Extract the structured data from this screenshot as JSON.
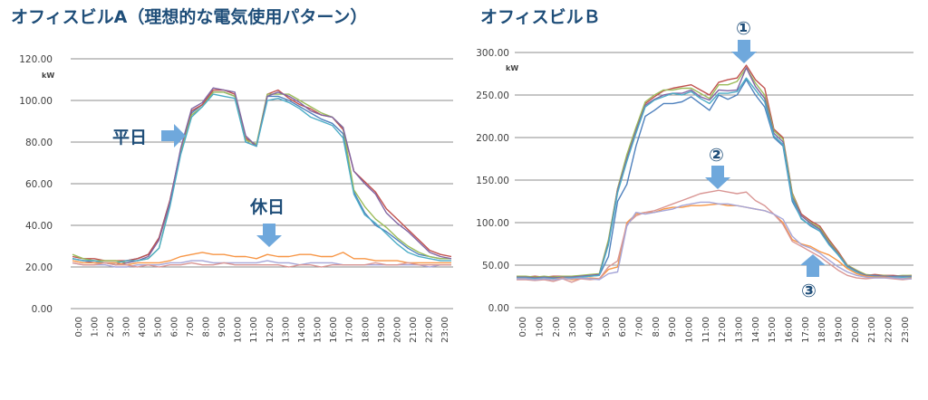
{
  "chart_data": [
    {
      "type": "line",
      "title": "オフィスビルA（理想的な電気使用パターン）",
      "ylabel": "kW",
      "ylim": [
        0,
        120
      ],
      "y_ticks": [
        "0.00",
        "20.00",
        "40.00",
        "60.00",
        "80.00",
        "100.00",
        "120.00"
      ],
      "x_ticks": [
        "0:00",
        "1:00",
        "2:00",
        "3:00",
        "4:00",
        "5:00",
        "6:00",
        "7:00",
        "8:00",
        "9:00",
        "10:00",
        "11:00",
        "12:00",
        "13:00",
        "14:00",
        "15:00",
        "16:00",
        "17:00",
        "18:00",
        "19:00",
        "20:00",
        "21:00",
        "22:00",
        "23:00"
      ],
      "grid": true,
      "annotations": [
        {
          "label": "平日",
          "arrow": "right"
        },
        {
          "label": "休日",
          "arrow": "down"
        }
      ],
      "series": [
        {
          "color": "#4f81bd",
          "values": [
            24,
            23,
            23,
            22,
            22,
            23,
            24,
            26,
            34,
            52,
            76,
            94,
            98,
            104,
            104,
            102,
            80,
            78,
            102,
            102,
            100,
            97,
            94,
            91,
            89,
            84,
            56,
            46,
            40,
            37,
            33,
            29,
            26,
            25,
            24,
            24
          ]
        },
        {
          "color": "#c0504d",
          "values": [
            25,
            24,
            24,
            23,
            23,
            23,
            24,
            26,
            34,
            52,
            76,
            95,
            98,
            105,
            105,
            103,
            82,
            78,
            103,
            105,
            101,
            98,
            96,
            93,
            92,
            86,
            66,
            61,
            56,
            48,
            43,
            38,
            33,
            28,
            26,
            25
          ]
        },
        {
          "color": "#9bbb59",
          "values": [
            26,
            24,
            23,
            23,
            23,
            22,
            23,
            24,
            29,
            50,
            75,
            93,
            97,
            104,
            104,
            102,
            81,
            79,
            103,
            103,
            103,
            100,
            97,
            94,
            92,
            87,
            57,
            49,
            43,
            39,
            34,
            30,
            27,
            25,
            24,
            24
          ]
        },
        {
          "color": "#8064a2",
          "values": [
            24,
            23,
            22,
            22,
            21,
            22,
            23,
            25,
            33,
            51,
            77,
            96,
            99,
            106,
            105,
            104,
            83,
            78,
            102,
            104,
            102,
            99,
            95,
            93,
            92,
            87,
            66,
            60,
            55,
            46,
            41,
            37,
            32,
            27,
            25,
            24
          ]
        },
        {
          "color": "#4bacc6",
          "values": [
            24,
            23,
            23,
            22,
            22,
            23,
            23,
            24,
            29,
            49,
            74,
            92,
            97,
            103,
            102,
            101,
            80,
            78,
            100,
            101,
            99,
            96,
            92,
            90,
            88,
            82,
            55,
            45,
            41,
            36,
            31,
            27,
            25,
            24,
            23,
            23
          ]
        },
        {
          "color": "#f79646",
          "values": [
            23,
            22,
            22,
            22,
            22,
            21,
            22,
            22,
            22,
            23,
            25,
            26,
            27,
            26,
            26,
            25,
            25,
            24,
            26,
            25,
            25,
            26,
            26,
            25,
            25,
            27,
            24,
            24,
            23,
            23,
            23,
            22,
            22,
            22,
            22,
            22
          ]
        },
        {
          "color": "#a6a6d8",
          "values": [
            22,
            21,
            21,
            21,
            20,
            20,
            21,
            21,
            21,
            22,
            22,
            23,
            23,
            22,
            22,
            22,
            22,
            22,
            23,
            22,
            22,
            21,
            22,
            22,
            22,
            21,
            21,
            21,
            21,
            21,
            21,
            21,
            21,
            20,
            21,
            21
          ]
        },
        {
          "color": "#d99694",
          "values": [
            22,
            21,
            21,
            22,
            21,
            21,
            20,
            21,
            20,
            21,
            21,
            22,
            21,
            21,
            22,
            21,
            21,
            21,
            21,
            21,
            20,
            21,
            21,
            20,
            21,
            21,
            21,
            21,
            22,
            21,
            21,
            22,
            21,
            21,
            21,
            21
          ]
        }
      ]
    },
    {
      "type": "line",
      "title": "オフィスビルＢ",
      "ylabel": "kW",
      "ylim": [
        0,
        300
      ],
      "y_ticks": [
        "0.00",
        "50.00",
        "100.00",
        "150.00",
        "200.00",
        "250.00",
        "300.00"
      ],
      "x_ticks": [
        "0:00",
        "1:00",
        "2:00",
        "3:00",
        "4:00",
        "5:00",
        "6:00",
        "7:00",
        "8:00",
        "9:00",
        "10:00",
        "11:00",
        "12:00",
        "13:00",
        "14:00",
        "15:00",
        "16:00",
        "17:00",
        "18:00",
        "19:00",
        "20:00",
        "21:00",
        "22:00",
        "23:00"
      ],
      "grid": true,
      "annotations": [
        {
          "label": "①",
          "arrow": "down"
        },
        {
          "label": "②",
          "arrow": "down"
        },
        {
          "label": "③",
          "arrow": "up"
        }
      ],
      "series": [
        {
          "color": "#4f81bd",
          "values": [
            35,
            35,
            36,
            35,
            36,
            36,
            35,
            36,
            37,
            38,
            60,
            125,
            145,
            190,
            225,
            232,
            240,
            240,
            242,
            248,
            240,
            232,
            250,
            245,
            250,
            268,
            250,
            236,
            200,
            190,
            125,
            105,
            96,
            90,
            75,
            62,
            48,
            42,
            38,
            38,
            37,
            37,
            36,
            37
          ]
        },
        {
          "color": "#c0504d",
          "values": [
            36,
            36,
            37,
            36,
            37,
            37,
            36,
            37,
            38,
            39,
            78,
            140,
            178,
            210,
            240,
            248,
            255,
            258,
            260,
            262,
            256,
            250,
            265,
            268,
            270,
            285,
            268,
            258,
            210,
            200,
            135,
            110,
            102,
            96,
            80,
            66,
            50,
            44,
            38,
            39,
            38,
            38,
            37,
            38
          ]
        },
        {
          "color": "#9bbb59",
          "values": [
            37,
            37,
            36,
            37,
            36,
            37,
            37,
            38,
            39,
            40,
            80,
            140,
            180,
            212,
            242,
            250,
            256,
            256,
            258,
            258,
            252,
            246,
            262,
            262,
            266,
            282,
            264,
            250,
            208,
            198,
            134,
            108,
            100,
            94,
            78,
            64,
            50,
            44,
            39,
            38,
            38,
            37,
            38,
            38
          ]
        },
        {
          "color": "#8064a2",
          "values": [
            36,
            36,
            35,
            36,
            35,
            36,
            36,
            37,
            38,
            39,
            76,
            138,
            175,
            208,
            238,
            245,
            250,
            252,
            252,
            256,
            248,
            244,
            256,
            255,
            256,
            282,
            260,
            246,
            205,
            195,
            130,
            108,
            99,
            92,
            76,
            63,
            49,
            43,
            38,
            38,
            37,
            37,
            37,
            37
          ]
        },
        {
          "color": "#4bacc6",
          "values": [
            35,
            35,
            34,
            35,
            34,
            35,
            35,
            36,
            37,
            38,
            74,
            135,
            172,
            205,
            236,
            244,
            248,
            252,
            250,
            254,
            246,
            240,
            252,
            252,
            254,
            270,
            256,
            242,
            202,
            192,
            128,
            104,
            97,
            90,
            74,
            62,
            48,
            42,
            37,
            37,
            36,
            36,
            36,
            36
          ]
        },
        {
          "color": "#f79646",
          "values": [
            34,
            34,
            33,
            34,
            33,
            35,
            33,
            34,
            35,
            34,
            45,
            48,
            100,
            110,
            112,
            112,
            116,
            118,
            118,
            120,
            120,
            121,
            122,
            120,
            120,
            118,
            116,
            114,
            110,
            100,
            80,
            75,
            72,
            66,
            62,
            55,
            46,
            40,
            37,
            36,
            36,
            35,
            34,
            35
          ]
        },
        {
          "color": "#d99694",
          "values": [
            33,
            33,
            32,
            33,
            31,
            34,
            30,
            34,
            33,
            34,
            48,
            55,
            98,
            108,
            112,
            114,
            118,
            122,
            126,
            130,
            134,
            136,
            138,
            136,
            134,
            136,
            126,
            120,
            110,
            98,
            78,
            72,
            66,
            60,
            52,
            44,
            38,
            35,
            34,
            35,
            35,
            34,
            33,
            34
          ]
        },
        {
          "color": "#a6a6d8",
          "values": [
            34,
            34,
            33,
            34,
            33,
            34,
            34,
            35,
            34,
            33,
            40,
            42,
            96,
            112,
            110,
            112,
            114,
            116,
            120,
            122,
            124,
            124,
            122,
            122,
            120,
            118,
            116,
            114,
            110,
            104,
            84,
            74,
            70,
            64,
            56,
            48,
            42,
            38,
            36,
            35,
            35,
            35,
            34,
            34
          ]
        }
      ]
    }
  ]
}
